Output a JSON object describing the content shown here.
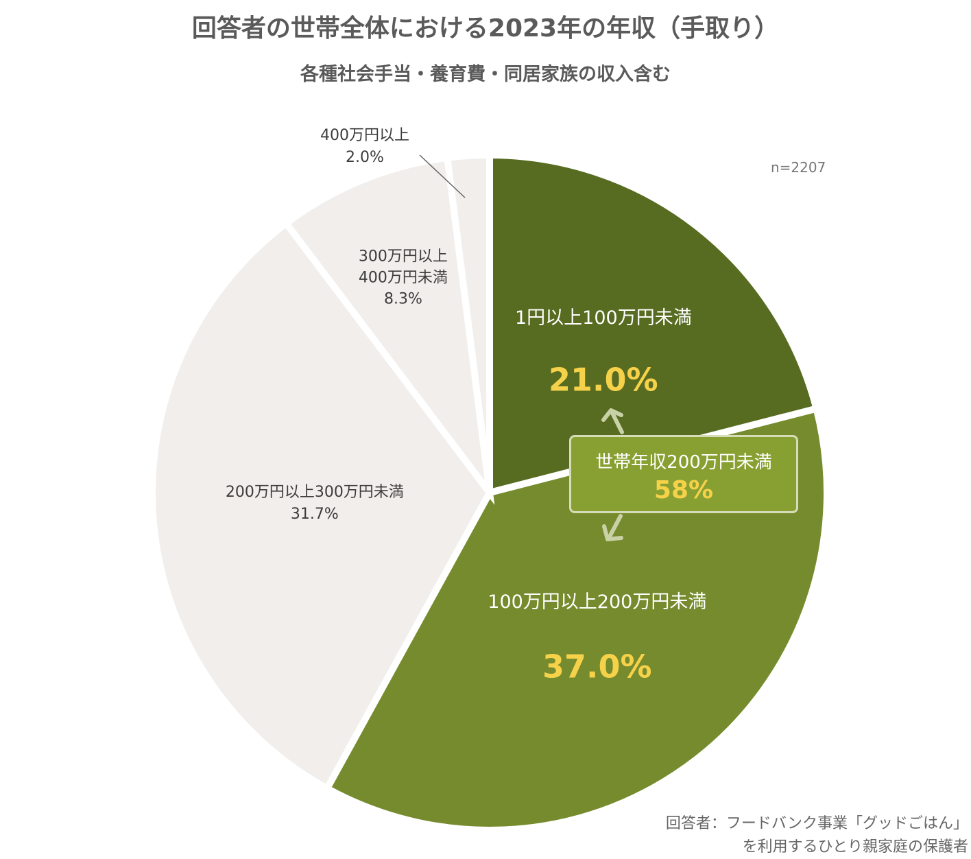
{
  "header": {
    "title": "回答者の世帯全体における2023年の年収（手取り）",
    "subtitle": "各種社会手当・養育費・同居家族の収入含む"
  },
  "n_label": "n=2207",
  "source": {
    "line1": "回答者：フードバンク事業「グッドごはん」",
    "line2": "を利用するひとり親家庭の保護者"
  },
  "callout": {
    "label": "世帯年収200万円未満",
    "value": "58%"
  },
  "colors": {
    "dark_green": "#576b21",
    "mid_green": "#768b2d",
    "light_gray": "#f1eeeb",
    "highlight_yellow": "#f6d14a",
    "callout_bg": "#88a032",
    "callout_border": "#d6dcb8"
  },
  "chart_data": {
    "type": "pie",
    "start": "12 o'clock, clockwise",
    "slices": [
      {
        "label": "1円以上100万円未満",
        "value": 21.0,
        "value_text": "21.0%",
        "color": "#576b21"
      },
      {
        "label": "100万円以上200万円未満",
        "value": 37.0,
        "value_text": "37.0%",
        "color": "#768b2d"
      },
      {
        "label": "200万円以上300万円未満",
        "value": 31.7,
        "value_text": "31.7%",
        "color": "#f1eeeb"
      },
      {
        "label": "300万円以上\n400万円未満",
        "value": 8.3,
        "value_text": "8.3%",
        "color": "#f1eeeb"
      },
      {
        "label": "400万円以上",
        "value": 2.0,
        "value_text": "2.0%",
        "color": "#f1eeeb"
      }
    ]
  }
}
